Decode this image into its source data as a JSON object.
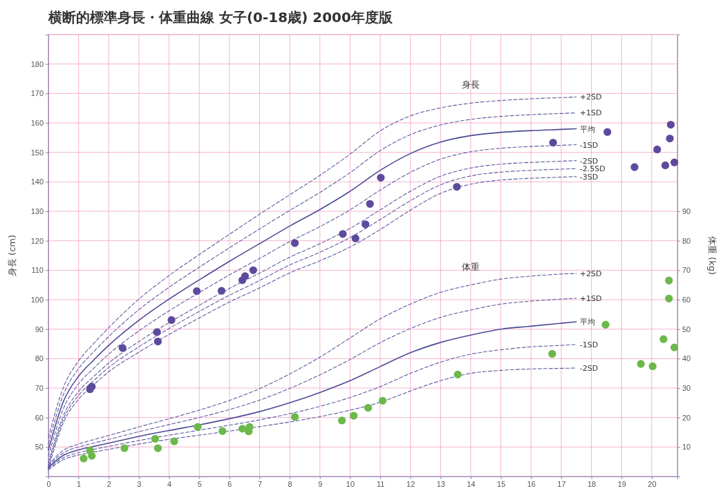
{
  "chart_data": {
    "type": "line",
    "title": "横断的標準身長・体重曲線 女子(0-18歳) 2000年度版",
    "ylabel": "身長 (cm)",
    "y2label": "体重 (kg)",
    "xlim": [
      0,
      20.85
    ],
    "xticks": [
      0,
      1,
      2,
      3,
      4,
      5,
      6,
      7,
      8,
      9,
      10,
      11,
      12,
      13,
      14,
      15,
      16,
      17,
      18,
      19,
      20
    ],
    "ylim": [
      40,
      190
    ],
    "yticks": [
      50,
      60,
      70,
      80,
      90,
      100,
      110,
      120,
      130,
      140,
      150,
      160,
      170,
      180
    ],
    "y2lim": [
      0,
      150
    ],
    "y2ticks": [
      10,
      20,
      30,
      40,
      50,
      60,
      70,
      80,
      90
    ],
    "grid": true,
    "annotations": [
      "身長",
      "体重"
    ],
    "series": [
      {
        "name": "+2SD",
        "color": "#5a5aa0",
        "line_style": "dashed",
        "marker": "none",
        "x": [
          0,
          0.5,
          1,
          1.5,
          2,
          3,
          4,
          5,
          6,
          7,
          8,
          9,
          10,
          11,
          12,
          13,
          14,
          15,
          16,
          17,
          17.5
        ],
        "values": [
          53.2,
          70.3,
          79.2,
          85.1,
          90.5,
          100.2,
          108.2,
          115.3,
          122.2,
          129.0,
          135.6,
          142.2,
          149.4,
          157.3,
          162.4,
          165.1,
          166.7,
          167.6,
          168.2,
          168.6,
          168.8
        ]
      },
      {
        "name": "+1SD",
        "color": "#5a5aa0",
        "line_style": "dashed",
        "marker": "none",
        "x": [
          0,
          0.5,
          1,
          1.5,
          2,
          3,
          4,
          5,
          6,
          7,
          8,
          9,
          10,
          11,
          12,
          13,
          14,
          15,
          16,
          17,
          17.5
        ],
        "values": [
          51.1,
          67.9,
          76.6,
          82.3,
          87.5,
          96.6,
          104.2,
          111.0,
          117.6,
          124.0,
          130.3,
          136.4,
          143.1,
          150.6,
          156.0,
          159.3,
          161.2,
          162.2,
          162.8,
          163.2,
          163.4
        ]
      },
      {
        "name": "平均",
        "color": "#4a4a96",
        "line_style": "solid",
        "marker": "none",
        "x": [
          0,
          0.5,
          1,
          1.5,
          2,
          3,
          4,
          5,
          6,
          7,
          8,
          9,
          10,
          11,
          12,
          13,
          14,
          15,
          16,
          17,
          17.5
        ],
        "values": [
          49.0,
          65.5,
          74.0,
          79.5,
          84.5,
          93.0,
          100.2,
          106.7,
          113.0,
          119.0,
          125.0,
          130.6,
          136.8,
          143.9,
          149.6,
          153.5,
          155.7,
          156.8,
          157.4,
          157.8,
          158.0
        ]
      },
      {
        "name": "-1SD",
        "color": "#5a5aa0",
        "line_style": "dashed",
        "marker": "none",
        "x": [
          0,
          0.5,
          1,
          1.5,
          2,
          3,
          4,
          5,
          6,
          7,
          8,
          9,
          10,
          11,
          12,
          13,
          14,
          15,
          16,
          17,
          17.5
        ],
        "values": [
          46.9,
          63.1,
          71.4,
          76.7,
          81.5,
          89.4,
          96.2,
          102.4,
          108.4,
          114.0,
          119.7,
          124.8,
          130.5,
          137.2,
          143.2,
          147.7,
          150.2,
          151.4,
          152.0,
          152.4,
          152.6
        ]
      },
      {
        "name": "-2SD",
        "color": "#5a5aa0",
        "line_style": "dashed",
        "marker": "none",
        "x": [
          0,
          0.5,
          1,
          1.5,
          2,
          3,
          4,
          5,
          6,
          7,
          8,
          9,
          10,
          11,
          12,
          13,
          14,
          15,
          16,
          17,
          17.5
        ],
        "values": [
          44.8,
          60.7,
          68.8,
          73.9,
          78.5,
          85.8,
          92.2,
          98.1,
          103.8,
          109.0,
          114.4,
          119.0,
          124.2,
          130.5,
          136.8,
          141.9,
          144.7,
          146.0,
          146.6,
          147.0,
          147.2
        ]
      },
      {
        "name": "-2.5SD",
        "color": "#5a5aa0",
        "line_style": "dashed",
        "marker": "none",
        "x": [
          0,
          0.5,
          1,
          1.5,
          2,
          3,
          4,
          5,
          6,
          7,
          8,
          9,
          10,
          11,
          12,
          13,
          14,
          15,
          16,
          17,
          17.5
        ],
        "values": [
          43.8,
          59.5,
          67.5,
          72.5,
          77.0,
          84.0,
          90.2,
          96.0,
          101.5,
          106.5,
          111.8,
          116.1,
          121.1,
          127.2,
          133.6,
          139.0,
          142.0,
          143.3,
          143.9,
          144.3,
          144.5
        ]
      },
      {
        "name": "-3SD",
        "color": "#5a5aa0",
        "line_style": "dashed",
        "marker": "none",
        "x": [
          0,
          0.5,
          1,
          1.5,
          2,
          3,
          4,
          5,
          6,
          7,
          8,
          9,
          10,
          11,
          12,
          13,
          14,
          15,
          16,
          17,
          17.5
        ],
        "values": [
          42.7,
          58.3,
          66.2,
          71.1,
          75.5,
          82.2,
          88.2,
          93.8,
          99.2,
          104.0,
          109.1,
          113.2,
          117.9,
          123.8,
          130.4,
          136.1,
          139.2,
          140.6,
          141.2,
          141.6,
          141.8
        ]
      },
      {
        "name": "+2SD",
        "axis": "y2",
        "color": "#5a5aa0",
        "line_style": "dashed",
        "marker": "none",
        "x": [
          0,
          0.5,
          1,
          1.5,
          2,
          3,
          4,
          5,
          6,
          7,
          8,
          9,
          10,
          11,
          12,
          13,
          14,
          15,
          16,
          17,
          17.5
        ],
        "values": [
          3.9,
          8.9,
          11.0,
          12.5,
          13.9,
          16.8,
          19.6,
          22.5,
          25.8,
          29.8,
          34.8,
          40.5,
          47.0,
          53.5,
          58.5,
          62.5,
          65.0,
          67.0,
          68.0,
          68.7,
          68.9
        ]
      },
      {
        "name": "+1SD",
        "axis": "y2",
        "color": "#5a5aa0",
        "line_style": "dashed",
        "marker": "none",
        "x": [
          0,
          0.5,
          1,
          1.5,
          2,
          3,
          4,
          5,
          6,
          7,
          8,
          9,
          10,
          11,
          12,
          13,
          14,
          15,
          16,
          17,
          17.5
        ],
        "values": [
          3.5,
          8.0,
          10.0,
          11.3,
          12.6,
          15.2,
          17.6,
          20.0,
          22.7,
          25.9,
          29.9,
          34.5,
          39.7,
          45.4,
          50.2,
          54.0,
          56.5,
          58.5,
          59.5,
          60.2,
          60.5
        ]
      },
      {
        "name": "平均",
        "axis": "y2",
        "color": "#4a4a96",
        "line_style": "solid",
        "marker": "none",
        "x": [
          0,
          0.5,
          1,
          1.5,
          2,
          3,
          4,
          5,
          6,
          7,
          8,
          9,
          10,
          11,
          12,
          13,
          14,
          15,
          16,
          17,
          17.5
        ],
        "values": [
          3.0,
          7.2,
          9.0,
          10.2,
          11.3,
          13.6,
          15.6,
          17.5,
          19.6,
          22.0,
          25.0,
          28.5,
          32.5,
          37.3,
          42.0,
          45.5,
          48.0,
          50.0,
          51.0,
          52.0,
          52.5
        ]
      },
      {
        "name": "-1SD",
        "axis": "y2",
        "color": "#5a5aa0",
        "line_style": "dashed",
        "marker": "none",
        "x": [
          0,
          0.5,
          1,
          1.5,
          2,
          3,
          4,
          5,
          6,
          7,
          8,
          9,
          10,
          11,
          12,
          13,
          14,
          15,
          16,
          17,
          17.5
        ],
        "values": [
          2.6,
          6.4,
          8.1,
          9.2,
          10.2,
          12.2,
          14.0,
          15.7,
          17.4,
          19.2,
          21.3,
          23.8,
          26.8,
          30.5,
          35.0,
          38.8,
          41.5,
          43.0,
          44.0,
          44.5,
          44.8
        ]
      },
      {
        "name": "-2SD",
        "axis": "y2",
        "color": "#5a5aa0",
        "line_style": "dashed",
        "marker": "none",
        "x": [
          0,
          0.5,
          1,
          1.5,
          2,
          3,
          4,
          5,
          6,
          7,
          8,
          9,
          10,
          11,
          12,
          13,
          14,
          15,
          16,
          17,
          17.5
        ],
        "values": [
          2.2,
          5.7,
          7.3,
          8.3,
          9.2,
          11.0,
          12.6,
          14.0,
          15.4,
          16.9,
          18.5,
          20.3,
          22.5,
          25.2,
          29.0,
          32.5,
          35.0,
          36.0,
          36.5,
          36.7,
          36.8
        ]
      },
      {
        "type": "scatter",
        "color": "#5e4a9c",
        "marker": "circle",
        "x": [
          1.44,
          1.38,
          2.46,
          3.63,
          3.6,
          4.08,
          4.92,
          5.74,
          6.43,
          6.52,
          6.79,
          8.17,
          9.76,
          10.18,
          10.51,
          10.66,
          11.02,
          13.54,
          16.73,
          18.53,
          19.43,
          20.45,
          20.75,
          20.18,
          20.6,
          20.63
        ],
        "values": [
          70.5,
          69.6,
          83.6,
          85.8,
          89.0,
          93.1,
          102.9,
          103.0,
          106.6,
          108.0,
          110.0,
          119.2,
          122.3,
          120.8,
          125.6,
          132.5,
          141.4,
          138.3,
          153.3,
          156.9,
          145.0,
          145.6,
          146.6,
          151.0,
          154.7,
          159.4
        ]
      },
      {
        "type": "scatter",
        "axis": "y2",
        "color": "#6cb84a",
        "marker": "circle",
        "x": [
          1.17,
          1.44,
          1.38,
          2.52,
          3.63,
          3.54,
          4.17,
          4.95,
          5.77,
          6.43,
          6.64,
          6.67,
          8.17,
          9.73,
          10.12,
          10.6,
          11.08,
          13.57,
          16.7,
          18.47,
          19.64,
          20.03,
          20.39,
          20.57,
          20.57,
          20.75
        ],
        "values": [
          6.1,
          7.0,
          8.8,
          9.6,
          9.6,
          12.8,
          11.9,
          16.8,
          15.4,
          16.2,
          15.3,
          16.8,
          20.2,
          19.0,
          20.6,
          23.3,
          25.7,
          34.6,
          41.6,
          51.5,
          38.2,
          37.4,
          46.6,
          66.5,
          60.4,
          43.8
        ]
      }
    ]
  }
}
